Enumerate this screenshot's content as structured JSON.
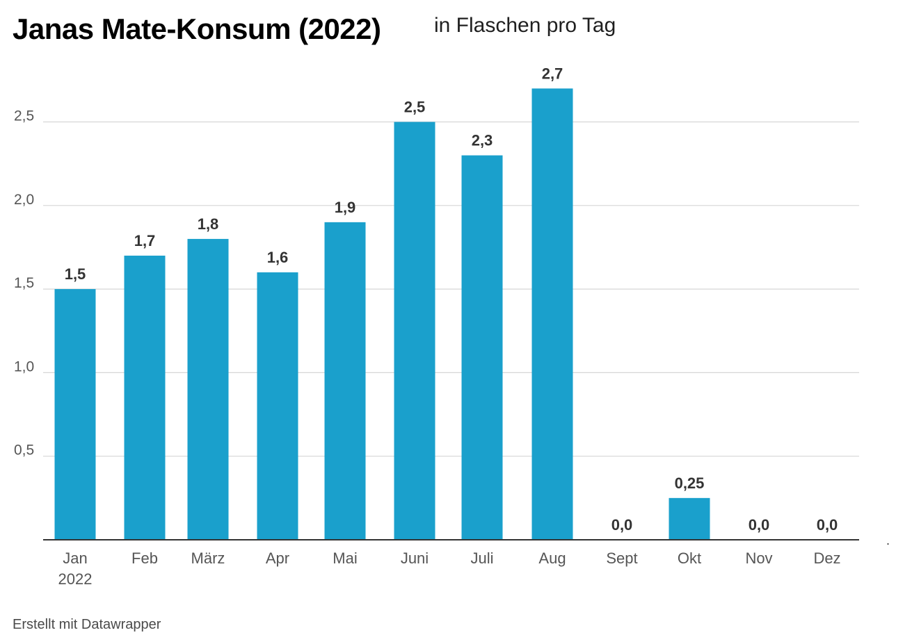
{
  "header": {
    "title": "Janas Mate-Konsum (2022)",
    "subtitle": "in Flaschen pro Tag"
  },
  "footer": {
    "credit": "Erstellt mit Datawrapper"
  },
  "colors": {
    "bar": "#1aa0cc",
    "grid": "#d6d6d6",
    "baseline": "#333333",
    "label": "#333333",
    "tick": "#555555"
  },
  "chart_data": {
    "type": "bar",
    "title": "Janas Mate-Konsum (2022)",
    "subtitle": "in Flaschen pro Tag",
    "xlabel": "",
    "ylabel": "",
    "categories": [
      "Jan\n2022",
      "Feb",
      "März",
      "Apr",
      "Mai",
      "Juni",
      "Juli",
      "Aug",
      "Sept",
      "Okt",
      "Nov",
      "Dez"
    ],
    "values": [
      1.5,
      1.7,
      1.8,
      1.6,
      1.9,
      2.5,
      2.3,
      2.7,
      0.0,
      0.25,
      0.0,
      0.0
    ],
    "value_labels": [
      "1,5",
      "1,7",
      "1,8",
      "1,6",
      "1,9",
      "2,5",
      "2,3",
      "2,7",
      "0,0",
      "0,25",
      "0,0",
      "0,0"
    ],
    "yticks": [
      0.5,
      1.0,
      1.5,
      2.0,
      2.5
    ],
    "ytick_labels": [
      "0,5",
      "1,0",
      "1,5",
      "2,0",
      "2,5"
    ],
    "ylim": [
      0,
      2.7
    ],
    "grid": true,
    "legend": "none"
  }
}
